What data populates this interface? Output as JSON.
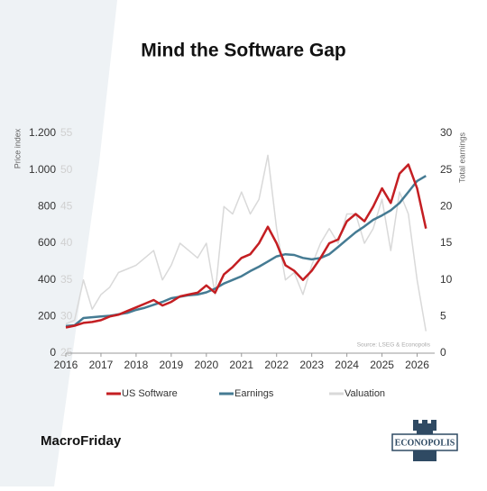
{
  "chart_data": {
    "type": "line",
    "title": "Mind the Software Gap",
    "ylabel": "Price index",
    "y2label": "Total earnings",
    "source": "Source: LSEG & Econopolis",
    "footer": "MacroFriday",
    "logo_text": "ECONOPOLIS",
    "x": [
      2016,
      2016.25,
      2016.5,
      2016.75,
      2017,
      2017.25,
      2017.5,
      2017.75,
      2018,
      2018.25,
      2018.5,
      2018.75,
      2019,
      2019.25,
      2019.5,
      2019.75,
      2020,
      2020.25,
      2020.5,
      2020.75,
      2021,
      2021.25,
      2021.5,
      2021.75,
      2022,
      2022.25,
      2022.5,
      2022.75,
      2023,
      2023.25,
      2023.5,
      2023.75,
      2024,
      2024.25,
      2024.5,
      2024.75,
      2025,
      2025.25,
      2025.5,
      2025.75,
      2026,
      2026.25
    ],
    "xlim": [
      2016,
      2026.5
    ],
    "xticks": [
      2016,
      2017,
      2018,
      2019,
      2020,
      2021,
      2022,
      2023,
      2024,
      2025,
      2026
    ],
    "ylim": [
      0,
      1200
    ],
    "yticks": [
      0,
      200,
      400,
      600,
      800,
      {
        "value": 1000,
        "label": "1.000"
      },
      {
        "value": 1200,
        "label": "1.200"
      }
    ],
    "y2lim": [
      0,
      30
    ],
    "y2ticks": [
      0,
      5,
      10,
      15,
      20,
      25,
      30
    ],
    "y3lim": [
      25,
      55
    ],
    "y3ticks": [
      25,
      30,
      35,
      40,
      45,
      50,
      55
    ],
    "series": [
      {
        "name": "Valuation",
        "color": "#d9d9d9",
        "axis": "y3",
        "values": [
          29,
          29.5,
          35,
          31,
          33,
          34,
          36,
          36.5,
          37,
          38,
          39,
          35,
          37,
          40,
          39,
          38,
          40,
          33,
          45,
          44,
          47,
          44,
          46,
          52,
          42,
          35,
          36,
          33,
          37,
          40,
          42,
          40,
          44,
          44,
          40,
          42,
          46,
          39,
          47,
          44,
          35,
          28
        ]
      },
      {
        "name": "Earnings",
        "color": "#457b93",
        "axis": "y2",
        "values": [
          3.7,
          3.8,
          4.8,
          4.9,
          5.0,
          5.1,
          5.3,
          5.5,
          5.9,
          6.2,
          6.6,
          7.0,
          7.5,
          7.7,
          7.9,
          8.0,
          8.3,
          8.8,
          9.5,
          10.0,
          10.5,
          11.2,
          11.8,
          12.5,
          13.2,
          13.5,
          13.4,
          13.0,
          12.8,
          13.0,
          13.5,
          14.5,
          15.5,
          16.5,
          17.3,
          18.2,
          18.8,
          19.5,
          20.5,
          22.0,
          23.5,
          24.2
        ]
      },
      {
        "name": "US Software",
        "color": "#c41e22",
        "axis": "y",
        "values": [
          140,
          150,
          165,
          170,
          180,
          200,
          210,
          230,
          250,
          270,
          290,
          260,
          280,
          310,
          320,
          330,
          370,
          330,
          430,
          470,
          520,
          540,
          600,
          690,
          600,
          480,
          450,
          400,
          450,
          520,
          600,
          620,
          720,
          760,
          720,
          800,
          900,
          820,
          980,
          1030,
          900,
          680
        ]
      }
    ],
    "legend_order": [
      2,
      1,
      0
    ]
  }
}
